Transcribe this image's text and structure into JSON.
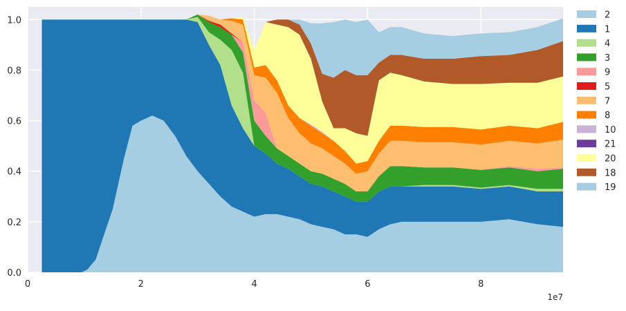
{
  "chart_data": {
    "type": "area",
    "stacked": true,
    "normalized": true,
    "xlim": [
      0,
      94500000
    ],
    "ylim": [
      0,
      1.05
    ],
    "x_ticks": [
      0,
      20000000,
      40000000,
      60000000,
      80000000
    ],
    "x_tick_labels": [
      "0",
      "2",
      "4",
      "6",
      "8"
    ],
    "y_ticks": [
      0.0,
      0.2,
      0.4,
      0.6,
      0.8,
      1.0
    ],
    "y_tick_labels": [
      "0.0",
      "0.2",
      "0.4",
      "0.6",
      "0.8",
      "1.0"
    ],
    "x_offset_label": "1e7",
    "grid": true,
    "legend_position": "outside right",
    "x": [
      2500000,
      9500000,
      10500000,
      12000000,
      13500000,
      15000000,
      17000000,
      18500000,
      20000000,
      22000000,
      24000000,
      26000000,
      28000000,
      30000000,
      32000000,
      34000000,
      36000000,
      38000000,
      40000000,
      42000000,
      44000000,
      46000000,
      48000000,
      50000000,
      52000000,
      54000000,
      56000000,
      58000000,
      60000000,
      62000000,
      64000000,
      66000000,
      70000000,
      75000000,
      80000000,
      85000000,
      90000000,
      94500000
    ],
    "series": [
      {
        "name": "2",
        "color": "#a6cee3",
        "values": [
          0,
          0,
          0.01,
          0.05,
          0.15,
          0.25,
          0.45,
          0.58,
          0.6,
          0.62,
          0.6,
          0.54,
          0.46,
          0.4,
          0.35,
          0.3,
          0.26,
          0.24,
          0.22,
          0.23,
          0.23,
          0.22,
          0.21,
          0.19,
          0.18,
          0.17,
          0.15,
          0.15,
          0.14,
          0.17,
          0.19,
          0.2,
          0.2,
          0.2,
          0.2,
          0.21,
          0.19,
          0.18
        ]
      },
      {
        "name": "1",
        "color": "#1f78b4",
        "values": [
          1,
          1,
          0.99,
          0.95,
          0.85,
          0.75,
          0.55,
          0.42,
          0.4,
          0.38,
          0.4,
          0.46,
          0.54,
          0.59,
          0.55,
          0.52,
          0.4,
          0.33,
          0.28,
          0.24,
          0.2,
          0.19,
          0.17,
          0.16,
          0.16,
          0.15,
          0.15,
          0.13,
          0.14,
          0.15,
          0.15,
          0.14,
          0.14,
          0.14,
          0.13,
          0.13,
          0.13,
          0.14
        ]
      },
      {
        "name": "4",
        "color": "#b2df8a",
        "values": [
          0,
          0,
          0,
          0,
          0,
          0,
          0,
          0,
          0,
          0,
          0,
          0,
          0,
          0.02,
          0.05,
          0.1,
          0.22,
          0.22,
          0.0,
          0.0,
          0.0,
          0.0,
          0.0,
          0.0,
          0.0,
          0.0,
          0.0,
          0.0,
          0.0,
          0.0,
          0.0,
          0.0,
          0.005,
          0.005,
          0.005,
          0.005,
          0.01,
          0.01
        ]
      },
      {
        "name": "3",
        "color": "#33a02c",
        "values": [
          0,
          0,
          0,
          0,
          0,
          0,
          0,
          0,
          0,
          0,
          0,
          0,
          0,
          0.01,
          0.04,
          0.05,
          0.06,
          0.08,
          0.1,
          0.07,
          0.06,
          0.05,
          0.05,
          0.05,
          0.05,
          0.05,
          0.05,
          0.04,
          0.04,
          0.06,
          0.08,
          0.08,
          0.07,
          0.07,
          0.07,
          0.07,
          0.07,
          0.08
        ]
      },
      {
        "name": "9",
        "color": "#fb9a99",
        "values": [
          0,
          0,
          0,
          0,
          0,
          0,
          0,
          0,
          0,
          0,
          0,
          0,
          0,
          0,
          0,
          0,
          0,
          0.04,
          0.08,
          0.09,
          0,
          0,
          0,
          0,
          0,
          0,
          0,
          0,
          0,
          0,
          0,
          0,
          0,
          0,
          0,
          0.005,
          0.01,
          0.005
        ]
      },
      {
        "name": "5",
        "color": "#e31a1c",
        "values": [
          0,
          0,
          0,
          0,
          0,
          0,
          0,
          0,
          0,
          0,
          0,
          0,
          0,
          0,
          0.005,
          0.01,
          0.005,
          0,
          0,
          0,
          0,
          0,
          0,
          0,
          0,
          0,
          0,
          0,
          0,
          0,
          0,
          0,
          0,
          0,
          0,
          0,
          0,
          0
        ]
      },
      {
        "name": "7",
        "color": "#fdbf6f",
        "values": [
          0,
          0,
          0,
          0,
          0,
          0,
          0,
          0,
          0,
          0,
          0,
          0,
          0,
          0,
          0.02,
          0.02,
          0.05,
          0.07,
          0.1,
          0.14,
          0.22,
          0.15,
          0.12,
          0.11,
          0.1,
          0.09,
          0.08,
          0.07,
          0.08,
          0.09,
          0.1,
          0.1,
          0.1,
          0.1,
          0.1,
          0.1,
          0.1,
          0.11
        ]
      },
      {
        "name": "8",
        "color": "#ff7f00",
        "values": [
          0,
          0,
          0,
          0,
          0,
          0,
          0,
          0,
          0,
          0,
          0,
          0,
          0,
          0,
          0,
          0,
          0.01,
          0.02,
          0.03,
          0.05,
          0.05,
          0.05,
          0.06,
          0.07,
          0.06,
          0.06,
          0.05,
          0.04,
          0.04,
          0.05,
          0.06,
          0.06,
          0.06,
          0.06,
          0.06,
          0.06,
          0.06,
          0.07
        ]
      },
      {
        "name": "10",
        "color": "#cab2d6",
        "values": [
          0,
          0,
          0,
          0,
          0,
          0,
          0,
          0,
          0,
          0,
          0,
          0,
          0,
          0,
          0,
          0,
          0,
          0,
          0,
          0,
          0,
          0,
          0,
          0.005,
          0.005,
          0,
          0,
          0,
          0,
          0,
          0,
          0,
          0,
          0,
          0,
          0,
          0,
          0
        ]
      },
      {
        "name": "21",
        "color": "#6a3d9a",
        "values": [
          0,
          0,
          0,
          0,
          0,
          0,
          0,
          0,
          0,
          0,
          0,
          0,
          0,
          0,
          0,
          0,
          0,
          0,
          0,
          0,
          0,
          0,
          0,
          0,
          0,
          0,
          0,
          0,
          0,
          0,
          0,
          0,
          0,
          0,
          0,
          0,
          0,
          0
        ]
      },
      {
        "name": "20",
        "color": "#ffff99",
        "values": [
          0,
          0,
          0,
          0,
          0,
          0,
          0,
          0,
          0,
          0,
          0,
          0,
          0,
          0,
          0,
          0,
          0,
          0.01,
          0.07,
          0.17,
          0.22,
          0.31,
          0.33,
          0.26,
          0.12,
          0.05,
          0.09,
          0.12,
          0.1,
          0.24,
          0.21,
          0.2,
          0.18,
          0.17,
          0.18,
          0.17,
          0.18,
          0.18
        ]
      },
      {
        "name": "18",
        "color": "#b15928",
        "values": [
          0,
          0,
          0,
          0,
          0,
          0,
          0,
          0,
          0,
          0,
          0,
          0,
          0,
          0,
          0,
          0,
          0,
          0,
          0,
          0,
          0.02,
          0.03,
          0.04,
          0.06,
          0.11,
          0.2,
          0.23,
          0.23,
          0.24,
          0.07,
          0.07,
          0.08,
          0.09,
          0.1,
          0.11,
          0.11,
          0.13,
          0.14
        ]
      },
      {
        "name": "19",
        "color": "#a6cee3",
        "values": [
          0,
          0,
          0,
          0,
          0,
          0,
          0,
          0,
          0,
          0,
          0,
          0,
          0,
          0,
          0,
          0,
          0,
          0,
          0,
          0,
          0,
          0,
          0.02,
          0.08,
          0.2,
          0.22,
          0.2,
          0.21,
          0.22,
          0.12,
          0.11,
          0.11,
          0.1,
          0.09,
          0.09,
          0.09,
          0.09,
          0.09
        ]
      }
    ]
  }
}
